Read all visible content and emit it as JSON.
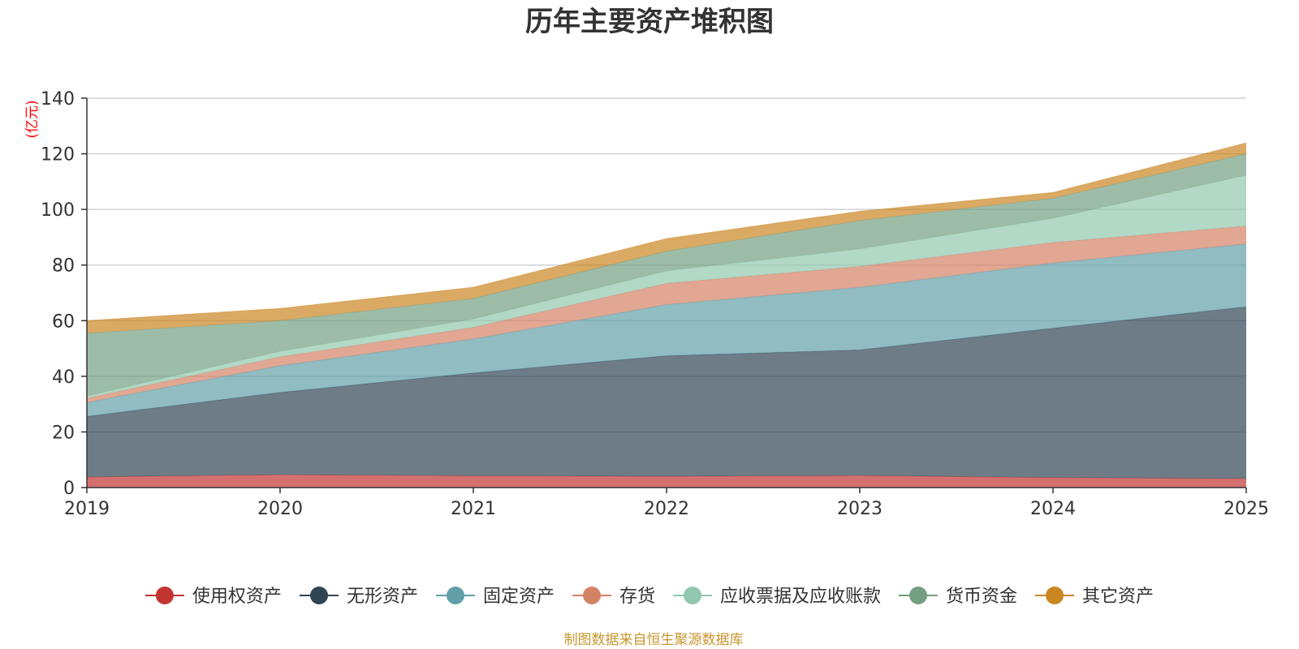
{
  "chart_data": {
    "type": "area",
    "stacked": true,
    "title": "历年主要资产堆积图",
    "ylabel": "(亿元)",
    "xlabel": "",
    "x": [
      "2019",
      "2020",
      "2021",
      "2022",
      "2023",
      "2024",
      "2025"
    ],
    "ylim": [
      0,
      140
    ],
    "yticks": [
      0,
      20,
      40,
      60,
      80,
      100,
      120,
      140
    ],
    "grid": true,
    "legend_position": "bottom",
    "source_note": "制图数据来自恒生聚源数据库",
    "series": [
      {
        "name": "使用权资产",
        "color": "#c23531",
        "values": [
          3.8,
          4.6,
          4.2,
          4.0,
          4.3,
          3.6,
          3.2
        ]
      },
      {
        "name": "无形资产",
        "color": "#2f4554",
        "values": [
          21.8,
          29.6,
          37.0,
          43.4,
          45.2,
          53.7,
          61.8
        ]
      },
      {
        "name": "固定资产",
        "color": "#61a0a8",
        "values": [
          5.0,
          9.6,
          12.2,
          18.4,
          22.5,
          23.4,
          22.6
        ]
      },
      {
        "name": "存货",
        "color": "#d48265",
        "values": [
          1.5,
          3.2,
          4.2,
          7.6,
          7.5,
          7.4,
          6.4
        ]
      },
      {
        "name": "应收票据及应收账款",
        "color": "#91c7ae",
        "values": [
          0.8,
          2.0,
          3.0,
          4.5,
          6.3,
          8.7,
          18.3
        ]
      },
      {
        "name": "货币资金",
        "color": "#749f83",
        "values": [
          22.6,
          11.0,
          7.4,
          7.1,
          10.2,
          7.2,
          7.7
        ]
      },
      {
        "name": "其它资产",
        "color": "#ca8622",
        "values": [
          4.5,
          4.4,
          4.0,
          4.5,
          3.3,
          2.1,
          3.9
        ]
      }
    ]
  }
}
